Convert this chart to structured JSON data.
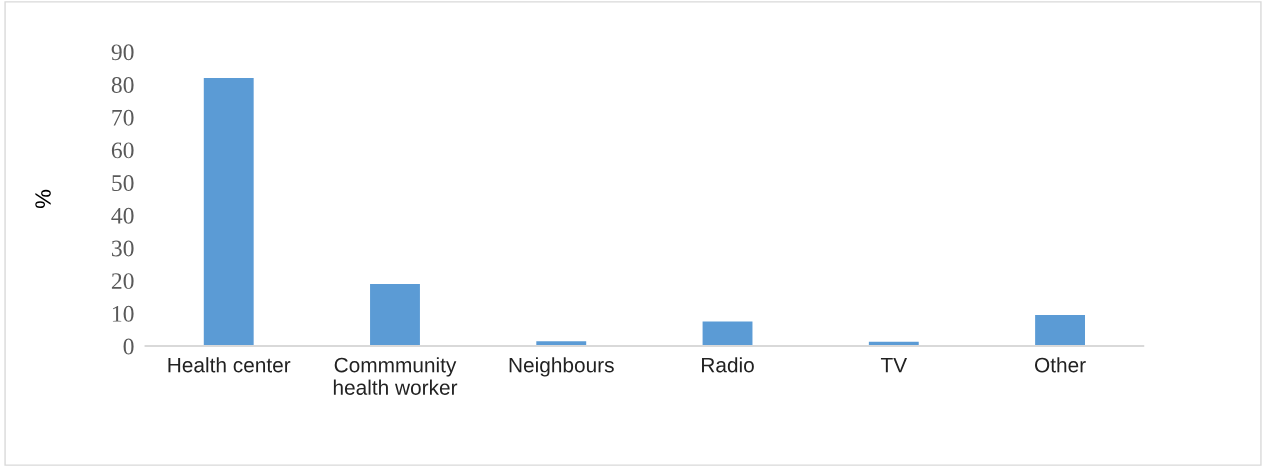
{
  "chart_data": {
    "type": "bar",
    "ylabel": "%",
    "categories": [
      "Health center",
      "Commmunity\nhealth worker",
      "Neighbours",
      "Radio",
      "TV",
      "Other"
    ],
    "values": [
      82,
      19,
      1.5,
      7.5,
      1.3,
      9.5
    ],
    "color": "#5b9bd5",
    "ylim": [
      0,
      90
    ],
    "yticks": [
      0,
      10,
      20,
      30,
      40,
      50,
      60,
      70,
      80,
      90
    ],
    "grid": false
  }
}
